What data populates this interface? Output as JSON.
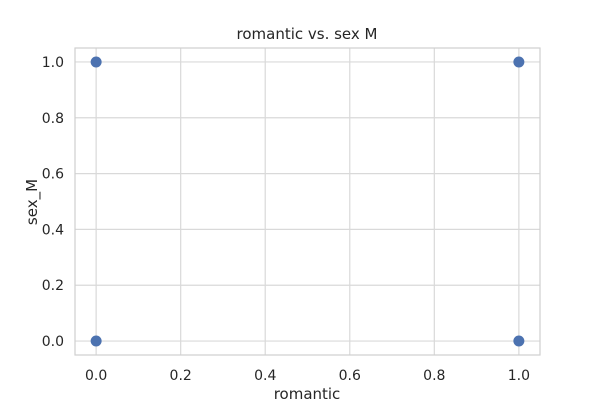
{
  "chart_data": {
    "type": "scatter",
    "title": "romantic vs. sex M",
    "xlabel": "romantic",
    "ylabel": "sex_M",
    "xlim": [
      -0.05,
      1.05
    ],
    "ylim": [
      -0.05,
      1.05
    ],
    "xticks": [
      0.0,
      0.2,
      0.4,
      0.6,
      0.8,
      1.0
    ],
    "yticks": [
      0.0,
      0.2,
      0.4,
      0.6,
      0.8,
      1.0
    ],
    "xtick_labels": [
      "0.0",
      "0.2",
      "0.4",
      "0.6",
      "0.8",
      "1.0"
    ],
    "ytick_labels": [
      "0.0",
      "0.2",
      "0.4",
      "0.6",
      "0.8",
      "1.0"
    ],
    "grid": true,
    "series": [
      {
        "points": [
          {
            "x": 0,
            "y": 1
          },
          {
            "x": 1,
            "y": 1
          },
          {
            "x": 0,
            "y": 0
          },
          {
            "x": 1,
            "y": 0
          }
        ],
        "color": "#4c72b0"
      }
    ],
    "style": {
      "background": "#ffffff",
      "grid_color": "#d9d9d9",
      "spine_color": "#cfcfcf",
      "text_color": "#262626"
    }
  }
}
